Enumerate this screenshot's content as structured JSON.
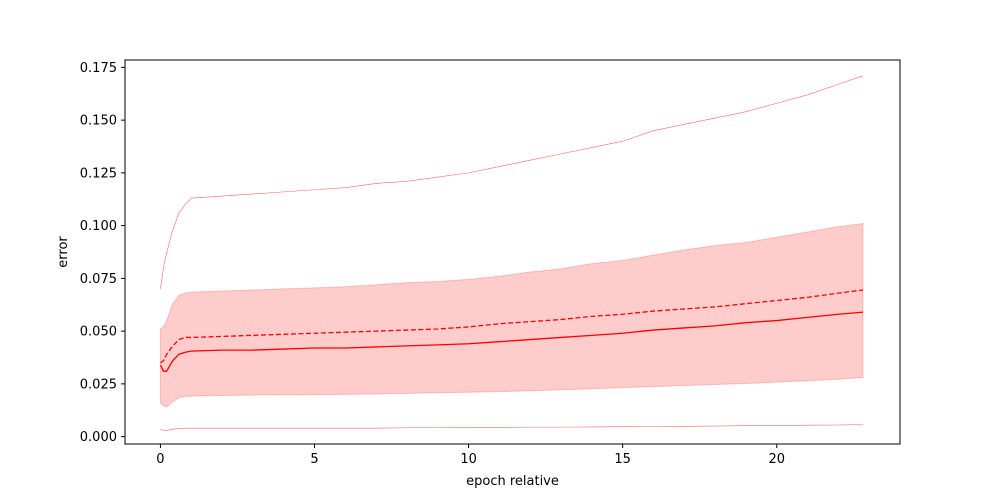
{
  "chart_data": {
    "type": "line",
    "title": "",
    "xlabel": "epoch relative",
    "ylabel": "error",
    "xlim": [
      -1.15,
      24
    ],
    "ylim": [
      -0.0035,
      0.1785
    ],
    "xticks": [
      0,
      5,
      10,
      15,
      20
    ],
    "xtick_labels": [
      "0",
      "5",
      "10",
      "15",
      "20"
    ],
    "yticks": [
      0.0,
      0.025,
      0.05,
      0.075,
      0.1,
      0.125,
      0.15,
      0.175
    ],
    "ytick_labels": [
      "0.000",
      "0.025",
      "0.050",
      "0.075",
      "0.100",
      "0.125",
      "0.150",
      "0.175"
    ],
    "grid": false,
    "legend": "none",
    "colors": {
      "line": "#ff0000",
      "band_fill": "#ff0000",
      "envelope": "#ff0000"
    },
    "series": [
      {
        "style": "solid",
        "x": [
          0,
          0.1,
          0.2,
          0.4,
          0.6,
          0.8,
          1,
          2,
          3,
          4,
          5,
          6,
          7,
          8,
          9,
          10,
          11,
          12,
          13,
          14,
          15,
          16,
          17,
          18,
          19,
          20,
          21,
          22,
          22.8
        ],
        "y": [
          0.034,
          0.031,
          0.031,
          0.036,
          0.039,
          0.04,
          0.0405,
          0.041,
          0.041,
          0.0415,
          0.042,
          0.042,
          0.0425,
          0.043,
          0.0435,
          0.044,
          0.045,
          0.046,
          0.047,
          0.048,
          0.049,
          0.0505,
          0.0515,
          0.0525,
          0.054,
          0.055,
          0.0565,
          0.058,
          0.059
        ]
      },
      {
        "style": "dashed",
        "x": [
          0,
          0.1,
          0.2,
          0.4,
          0.6,
          0.8,
          1,
          2,
          3,
          4,
          5,
          6,
          7,
          8,
          9,
          10,
          11,
          12,
          13,
          14,
          15,
          16,
          17,
          18,
          19,
          20,
          21,
          22,
          22.8
        ],
        "y": [
          0.035,
          0.036,
          0.039,
          0.043,
          0.046,
          0.047,
          0.047,
          0.0475,
          0.048,
          0.0485,
          0.049,
          0.0495,
          0.05,
          0.0505,
          0.051,
          0.052,
          0.0535,
          0.0545,
          0.0555,
          0.057,
          0.058,
          0.0595,
          0.0605,
          0.0615,
          0.063,
          0.0645,
          0.066,
          0.068,
          0.0695
        ]
      }
    ],
    "band": {
      "x": [
        0,
        0.1,
        0.2,
        0.4,
        0.6,
        0.8,
        1,
        2,
        3,
        4,
        5,
        6,
        7,
        8,
        9,
        10,
        11,
        12,
        13,
        14,
        15,
        16,
        17,
        18,
        19,
        20,
        21,
        22,
        22.8
      ],
      "lower": [
        0.016,
        0.0145,
        0.014,
        0.0165,
        0.0185,
        0.019,
        0.0192,
        0.0195,
        0.0197,
        0.0198,
        0.0199,
        0.02,
        0.0202,
        0.0205,
        0.0208,
        0.021,
        0.0213,
        0.0217,
        0.0222,
        0.0227,
        0.0232,
        0.0237,
        0.0242,
        0.0247,
        0.0252,
        0.0258,
        0.0265,
        0.0272,
        0.028
      ],
      "upper": [
        0.051,
        0.052,
        0.055,
        0.063,
        0.067,
        0.068,
        0.0685,
        0.069,
        0.0695,
        0.07,
        0.0705,
        0.071,
        0.072,
        0.073,
        0.0735,
        0.0745,
        0.076,
        0.078,
        0.0795,
        0.082,
        0.0835,
        0.086,
        0.0885,
        0.0905,
        0.092,
        0.0945,
        0.097,
        0.0995,
        0.101
      ]
    },
    "envelope": {
      "x": [
        0,
        0.1,
        0.2,
        0.4,
        0.6,
        0.8,
        1,
        2,
        3,
        4,
        5,
        6,
        7,
        8,
        9,
        10,
        11,
        12,
        13,
        14,
        15,
        16,
        17,
        18,
        19,
        20,
        21,
        22,
        22.8
      ],
      "lower": [
        0.0035,
        0.003,
        0.003,
        0.0035,
        0.0038,
        0.004,
        0.004,
        0.004,
        0.004,
        0.004,
        0.004,
        0.004,
        0.004,
        0.0042,
        0.0042,
        0.0043,
        0.0043,
        0.0045,
        0.0045,
        0.0046,
        0.0047,
        0.0048,
        0.0049,
        0.005,
        0.0052,
        0.0052,
        0.0054,
        0.0055,
        0.0058
      ],
      "upper": [
        0.07,
        0.08,
        0.087,
        0.098,
        0.106,
        0.11,
        0.113,
        0.114,
        0.115,
        0.116,
        0.117,
        0.118,
        0.12,
        0.121,
        0.123,
        0.125,
        0.128,
        0.131,
        0.134,
        0.137,
        0.14,
        0.145,
        0.148,
        0.151,
        0.154,
        0.158,
        0.162,
        0.167,
        0.171
      ]
    }
  }
}
